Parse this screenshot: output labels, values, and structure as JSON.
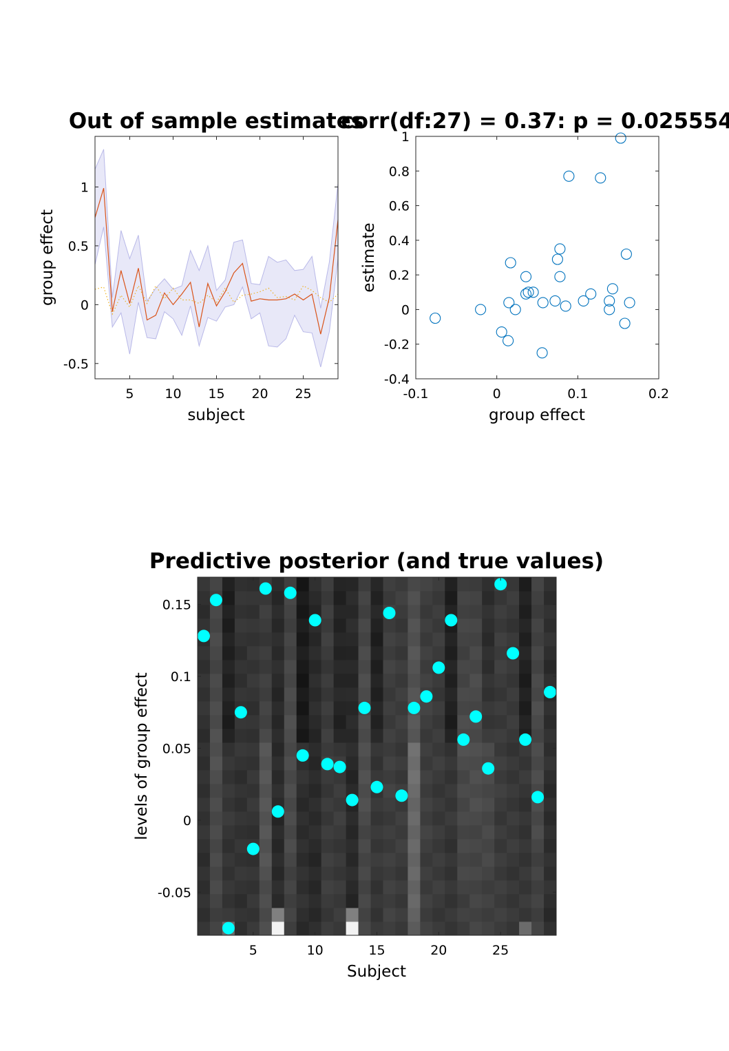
{
  "colors": {
    "mean_line": "#d95319",
    "true_line": "#edb120",
    "band_fill": "#e8e8f8",
    "band_edge": "#b8b8e8",
    "scatter_marker": "#0072bd",
    "true_marker": "#00ffff"
  },
  "chart_data": [
    {
      "type": "line",
      "title": "Out of sample estimates",
      "xlabel": "subject",
      "ylabel": "group effect",
      "xlim": [
        1,
        29
      ],
      "ylim": [
        -0.63,
        1.43
      ],
      "xticks": [
        5,
        10,
        15,
        20,
        25
      ],
      "yticks": [
        -0.5,
        0,
        0.5,
        1
      ],
      "ytick_labels": [
        "-0.5",
        "0",
        "0.5",
        "1"
      ],
      "x": [
        1,
        2,
        3,
        4,
        5,
        6,
        7,
        8,
        9,
        10,
        11,
        12,
        13,
        14,
        15,
        16,
        17,
        18,
        19,
        20,
        21,
        22,
        23,
        24,
        25,
        26,
        27,
        28,
        29
      ],
      "series": [
        {
          "role": "mean",
          "style": "solid",
          "values": [
            0.74,
            0.99,
            -0.06,
            0.29,
            0.01,
            0.31,
            -0.13,
            -0.09,
            0.1,
            0.0,
            0.09,
            0.19,
            -0.19,
            0.18,
            -0.01,
            0.11,
            0.27,
            0.35,
            0.03,
            0.05,
            0.04,
            0.04,
            0.05,
            0.09,
            0.04,
            0.09,
            -0.25,
            0.06,
            0.72
          ]
        },
        {
          "role": "upper",
          "style": "band",
          "values": [
            1.15,
            1.32,
            0.06,
            0.63,
            0.39,
            0.59,
            0.03,
            0.14,
            0.22,
            0.13,
            0.16,
            0.46,
            0.29,
            0.5,
            0.12,
            0.21,
            0.53,
            0.55,
            0.18,
            0.17,
            0.41,
            0.36,
            0.38,
            0.29,
            0.3,
            0.41,
            -0.03,
            0.36,
            1.03
          ]
        },
        {
          "role": "lower",
          "style": "band",
          "values": [
            0.34,
            0.66,
            -0.19,
            -0.07,
            -0.42,
            0.02,
            -0.28,
            -0.29,
            -0.06,
            -0.12,
            -0.26,
            -0.01,
            -0.35,
            -0.11,
            -0.14,
            -0.02,
            0.0,
            0.15,
            -0.12,
            -0.07,
            -0.35,
            -0.36,
            -0.29,
            -0.09,
            -0.23,
            -0.24,
            -0.53,
            -0.23,
            0.39
          ]
        },
        {
          "role": "true",
          "style": "dotted",
          "values": [
            0.13,
            0.15,
            -0.08,
            0.08,
            -0.02,
            0.16,
            0.01,
            0.16,
            0.05,
            0.14,
            0.04,
            0.04,
            0.01,
            0.08,
            0.02,
            0.14,
            0.02,
            0.08,
            0.09,
            0.11,
            0.14,
            0.06,
            0.07,
            0.04,
            0.16,
            0.12,
            0.06,
            0.02,
            0.09
          ]
        }
      ]
    },
    {
      "type": "scatter",
      "title": "corr(df:27) = 0.37: p = 0.025554",
      "xlabel": "group effect",
      "ylabel": "estimate",
      "xlim": [
        -0.1,
        0.2
      ],
      "ylim": [
        -0.4,
        1
      ],
      "xticks": [
        -0.1,
        0,
        0.1,
        0.2
      ],
      "xtick_labels": [
        "-0.1",
        "0",
        "0.1",
        "0.2"
      ],
      "yticks": [
        -0.4,
        -0.2,
        0,
        0.2,
        0.4,
        0.6,
        0.8,
        1
      ],
      "ytick_labels": [
        "-0.4",
        "-0.2",
        "0",
        "0.2",
        "0.4",
        "0.6",
        "0.8",
        "1"
      ],
      "points": [
        {
          "x": -0.076,
          "y": -0.05
        },
        {
          "x": -0.02,
          "y": 0.0
        },
        {
          "x": 0.006,
          "y": -0.13
        },
        {
          "x": 0.014,
          "y": -0.18
        },
        {
          "x": 0.015,
          "y": 0.04
        },
        {
          "x": 0.017,
          "y": 0.27
        },
        {
          "x": 0.023,
          "y": 0.0
        },
        {
          "x": 0.036,
          "y": 0.19
        },
        {
          "x": 0.036,
          "y": 0.09
        },
        {
          "x": 0.039,
          "y": 0.1
        },
        {
          "x": 0.045,
          "y": 0.1
        },
        {
          "x": 0.056,
          "y": -0.25
        },
        {
          "x": 0.057,
          "y": 0.04
        },
        {
          "x": 0.072,
          "y": 0.05
        },
        {
          "x": 0.075,
          "y": 0.29
        },
        {
          "x": 0.078,
          "y": 0.35
        },
        {
          "x": 0.078,
          "y": 0.19
        },
        {
          "x": 0.085,
          "y": 0.02
        },
        {
          "x": 0.089,
          "y": 0.77
        },
        {
          "x": 0.107,
          "y": 0.05
        },
        {
          "x": 0.116,
          "y": 0.09
        },
        {
          "x": 0.128,
          "y": 0.76
        },
        {
          "x": 0.139,
          "y": 0.05
        },
        {
          "x": 0.139,
          "y": 0.0
        },
        {
          "x": 0.143,
          "y": 0.12
        },
        {
          "x": 0.153,
          "y": 0.99
        },
        {
          "x": 0.158,
          "y": -0.08
        },
        {
          "x": 0.16,
          "y": 0.32
        },
        {
          "x": 0.164,
          "y": 0.04
        }
      ]
    },
    {
      "type": "heatmap",
      "title": "Predictive posterior (and true values)",
      "xlabel": "Subject",
      "ylabel": "levels of group effect",
      "xlim": [
        0.5,
        29.5
      ],
      "ylim": [
        -0.08,
        0.1689
      ],
      "xticks": [
        5,
        10,
        15,
        20,
        25
      ],
      "yticks": [
        -0.05,
        0,
        0.05,
        0.1,
        0.15
      ],
      "ytick_labels": [
        "-0.05",
        "0",
        "0.05",
        "0.1",
        "0.15"
      ],
      "colormap": "gray",
      "column_means": [
        0.06,
        0.18,
        0.09,
        0.07,
        0.08,
        0.25,
        0.01,
        0.17,
        0.04,
        0.01,
        0.13,
        0.12,
        0.0,
        0.18,
        0.1,
        0.15,
        0.13,
        0.4,
        0.15,
        0.12,
        0.09,
        0.16,
        0.17,
        0.16,
        0.13,
        0.11,
        0.09,
        0.16,
        0.04
      ],
      "true_values": [
        0.128,
        0.153,
        -0.075,
        0.075,
        -0.02,
        0.161,
        0.006,
        0.158,
        0.045,
        0.139,
        0.039,
        0.037,
        0.014,
        0.078,
        0.023,
        0.144,
        0.017,
        0.078,
        0.086,
        0.106,
        0.139,
        0.056,
        0.072,
        0.036,
        0.164,
        0.116,
        0.056,
        0.016,
        0.089
      ]
    }
  ]
}
